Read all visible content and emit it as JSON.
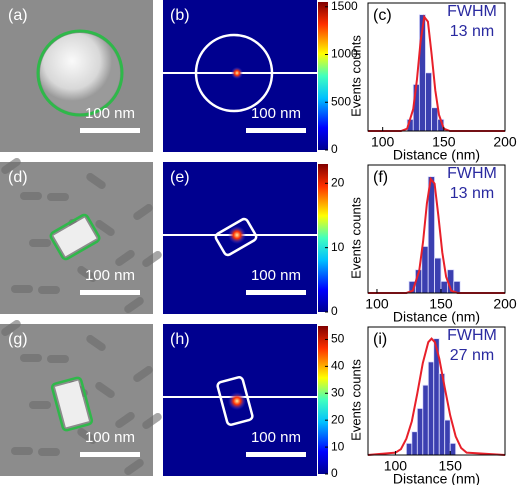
{
  "rows": [
    {
      "image": {
        "label": "(a)",
        "scale_bar": "100 nm"
      },
      "map": {
        "label": "(b)",
        "scale_bar": "100 nm",
        "colorbar": {
          "label": "Events counts",
          "lim": [
            0,
            1550
          ],
          "ticks": [
            0,
            500,
            1000,
            1500
          ]
        }
      }
    },
    {
      "image": {
        "label": "(d)",
        "scale_bar": "100 nm"
      },
      "map": {
        "label": "(e)",
        "scale_bar": "100 nm",
        "colorbar": {
          "label": "Events counts",
          "lim": [
            0,
            23
          ],
          "ticks": [
            0,
            10,
            20
          ]
        }
      }
    },
    {
      "image": {
        "label": "(g)",
        "scale_bar": "100 nm"
      },
      "map": {
        "label": "(h)",
        "scale_bar": "100 nm",
        "colorbar": {
          "label": "Events counts",
          "lim": [
            0,
            55
          ],
          "ticks": [
            0,
            10,
            20,
            30,
            40,
            50
          ]
        }
      }
    }
  ],
  "chart_data": [
    {
      "type": "histogram",
      "label": "(c)",
      "annotation": [
        "FWHM",
        "13 nm"
      ],
      "xlabel": "Distance (nm)",
      "color": "#3b3fb0",
      "bins": [
        120,
        125,
        130,
        135,
        140,
        145,
        150
      ],
      "values": [
        1,
        4,
        10,
        5,
        2,
        1
      ],
      "fit": {
        "color": "#e8202a",
        "x": [
          88,
          115,
          120,
          125,
          128,
          131,
          134,
          137,
          140,
          143,
          146,
          150,
          155,
          200
        ],
        "values": [
          0,
          0,
          0.2,
          1.9,
          4.4,
          7.7,
          9.8,
          9.4,
          6.6,
          3.5,
          1.4,
          0.2,
          0,
          0
        ]
      },
      "xlim": [
        88,
        200
      ],
      "xticks": [
        100,
        150,
        200
      ],
      "ylim": [
        0,
        11
      ]
    },
    {
      "type": "histogram",
      "label": "(f)",
      "annotation": [
        "FWHM",
        "13 nm"
      ],
      "xlabel": "Distance (nm)",
      "color": "#3b3fb0",
      "bins": [
        125,
        130,
        135,
        140,
        145,
        150,
        155,
        160,
        165
      ],
      "values": [
        1,
        2,
        4,
        10,
        3,
        1,
        2,
        1
      ],
      "fit": {
        "color": "#e8202a",
        "x": [
          93,
          123,
          128,
          133,
          136,
          139,
          142,
          145,
          148,
          151,
          154,
          158,
          163,
          200
        ],
        "values": [
          0,
          0,
          0.2,
          1.9,
          4.4,
          7.7,
          9.8,
          9.4,
          6.6,
          3.5,
          1.4,
          0.2,
          0,
          0
        ]
      },
      "xlim": [
        93,
        200
      ],
      "xticks": [
        100,
        150,
        200
      ],
      "ylim": [
        0,
        11
      ]
    },
    {
      "type": "histogram",
      "label": "(i)",
      "annotation": [
        "FWHM",
        "27 nm"
      ],
      "xlabel": "Distance (nm)",
      "color": "#3b3fb0",
      "bins": [
        110,
        115,
        120,
        125,
        130,
        135,
        140,
        145,
        150,
        155
      ],
      "values": [
        1,
        2,
        4,
        6,
        8,
        10,
        7,
        3,
        1
      ],
      "fit": {
        "color": "#e8202a",
        "x": [
          75,
          100,
          105,
          110,
          115,
          120,
          125,
          130,
          133,
          136,
          140,
          145,
          150,
          155,
          160,
          165,
          200
        ],
        "values": [
          0,
          0.2,
          0.5,
          1.4,
          2.9,
          5.3,
          7.9,
          9.7,
          10,
          9.7,
          8.3,
          5.8,
          3.4,
          1.6,
          0.6,
          0.2,
          0
        ]
      },
      "xlim": [
        75,
        200
      ],
      "xticks": [
        100,
        150
      ],
      "ylim": [
        0,
        11
      ]
    }
  ]
}
